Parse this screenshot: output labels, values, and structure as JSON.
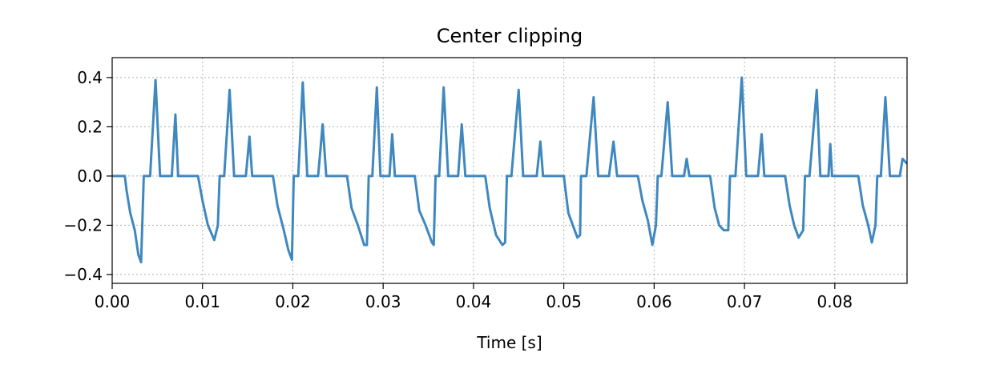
{
  "chart_data": {
    "type": "line",
    "title": "Center clipping",
    "xlabel": "Time [s]",
    "x": [
      0,
      0.0014,
      0.0016,
      0.002,
      0.0025,
      0.0029,
      0.0032,
      0.0035,
      0.0042,
      0.0048,
      0.0053,
      0.0066,
      0.007,
      0.0073,
      0.0095,
      0.01,
      0.0106,
      0.0113,
      0.0117,
      0.0119,
      0.0124,
      0.013,
      0.0135,
      0.0148,
      0.0152,
      0.0155,
      0.0178,
      0.0183,
      0.019,
      0.0195,
      0.0199,
      0.0201,
      0.0206,
      0.0211,
      0.0216,
      0.0228,
      0.0233,
      0.0237,
      0.026,
      0.0265,
      0.0272,
      0.0279,
      0.0282,
      0.0284,
      0.0288,
      0.0293,
      0.0297,
      0.0307,
      0.031,
      0.0313,
      0.0335,
      0.034,
      0.0347,
      0.0354,
      0.0356,
      0.0358,
      0.0362,
      0.0367,
      0.0372,
      0.0383,
      0.0387,
      0.0391,
      0.0413,
      0.0418,
      0.0425,
      0.0432,
      0.0435,
      0.0437,
      0.0442,
      0.045,
      0.0455,
      0.047,
      0.0474,
      0.0477,
      0.05,
      0.0505,
      0.051,
      0.0515,
      0.0518,
      0.0519,
      0.0525,
      0.0533,
      0.0538,
      0.055,
      0.0555,
      0.0559,
      0.0582,
      0.0587,
      0.0593,
      0.0598,
      0.0602,
      0.0604,
      0.0608,
      0.0615,
      0.062,
      0.0633,
      0.0636,
      0.0639,
      0.0662,
      0.0667,
      0.0672,
      0.0677,
      0.0682,
      0.0684,
      0.069,
      0.0697,
      0.0702,
      0.0715,
      0.0719,
      0.0722,
      0.0745,
      0.075,
      0.0755,
      0.076,
      0.0765,
      0.0767,
      0.0772,
      0.078,
      0.0784,
      0.0793,
      0.0795,
      0.0797,
      0.0826,
      0.0831,
      0.0837,
      0.0841,
      0.0845,
      0.0847,
      0.0851,
      0.0856,
      0.0861,
      0.0872,
      0.0875,
      0.088
    ],
    "series": [
      {
        "color": "#3f88bf",
        "values": [
          0,
          0,
          -0.06,
          -0.15,
          -0.22,
          -0.32,
          -0.35,
          0,
          0,
          0.39,
          0,
          0,
          0.25,
          0,
          0,
          -0.1,
          -0.2,
          -0.26,
          -0.2,
          0,
          0,
          0.35,
          0,
          0,
          0.16,
          0,
          0,
          -0.12,
          -0.22,
          -0.3,
          -0.34,
          0,
          0,
          0.38,
          0,
          0,
          0.21,
          0,
          0,
          -0.13,
          -0.2,
          -0.28,
          -0.28,
          0,
          0,
          0.36,
          0,
          0,
          0.17,
          0,
          0,
          -0.14,
          -0.2,
          -0.27,
          -0.28,
          0,
          0,
          0.36,
          0,
          0,
          0.21,
          0,
          0,
          -0.13,
          -0.24,
          -0.28,
          -0.27,
          0,
          0,
          0.35,
          0,
          0,
          0.14,
          0,
          0,
          -0.15,
          -0.2,
          -0.25,
          -0.24,
          0,
          0,
          0.32,
          0,
          0,
          0.14,
          0,
          0,
          -0.1,
          -0.18,
          -0.28,
          -0.2,
          0,
          0,
          0.3,
          0,
          0,
          0.07,
          0,
          0,
          -0.13,
          -0.2,
          -0.22,
          -0.22,
          0,
          0,
          0.4,
          0,
          0,
          0.17,
          0,
          0,
          -0.12,
          -0.2,
          -0.25,
          -0.22,
          0,
          0,
          0.35,
          0,
          0,
          0.13,
          0,
          0,
          -0.12,
          -0.2,
          -0.27,
          -0.2,
          0,
          0,
          0.32,
          0,
          0,
          0.07,
          0.05
        ]
      }
    ],
    "xlim": [
      0,
      0.088
    ],
    "ylim": [
      -0.436,
      0.481
    ],
    "xticks": [
      {
        "value": 0,
        "label": "0.00"
      },
      {
        "value": 0.01,
        "label": "0.01"
      },
      {
        "value": 0.02,
        "label": "0.02"
      },
      {
        "value": 0.03,
        "label": "0.03"
      },
      {
        "value": 0.04,
        "label": "0.04"
      },
      {
        "value": 0.05,
        "label": "0.05"
      },
      {
        "value": 0.06,
        "label": "0.06"
      },
      {
        "value": 0.07,
        "label": "0.07"
      },
      {
        "value": 0.08,
        "label": "0.08"
      }
    ],
    "yticks": [
      {
        "value": -0.4,
        "label": "−0.4"
      },
      {
        "value": -0.2,
        "label": "−0.2"
      },
      {
        "value": 0,
        "label": "0.0"
      },
      {
        "value": 0.2,
        "label": "0.2"
      },
      {
        "value": 0.4,
        "label": "0.4"
      }
    ],
    "grid": true
  }
}
